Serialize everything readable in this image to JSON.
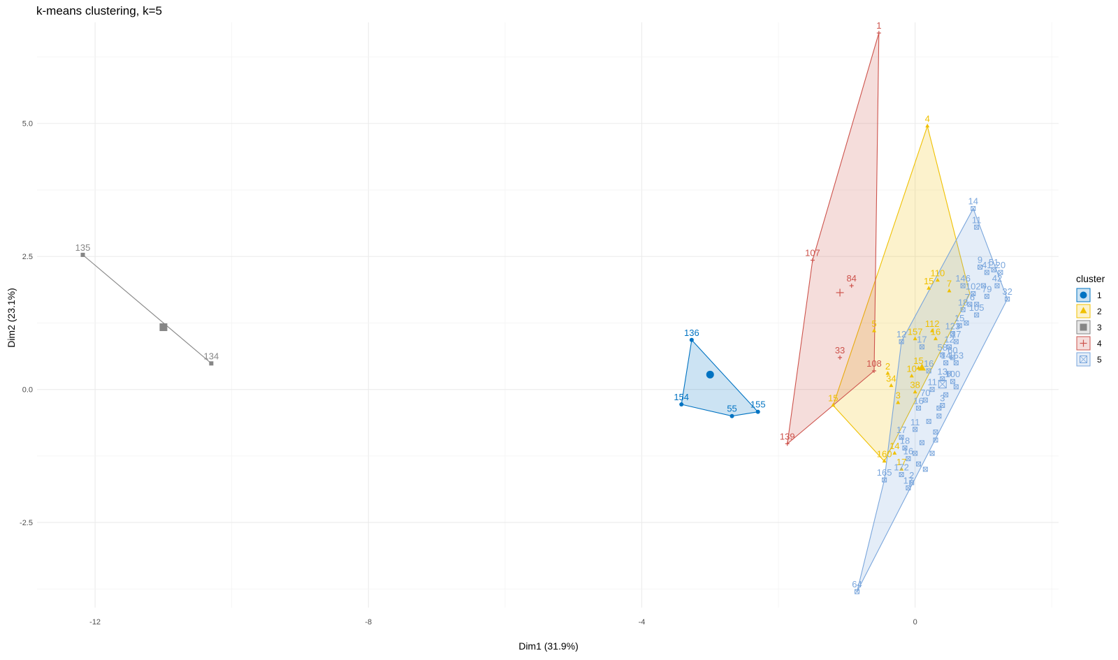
{
  "chart_data": {
    "type": "scatter",
    "title": "k-means clustering, k=5",
    "xlabel": "Dim1 (31.9%)",
    "ylabel": "Dim2 (23.1%)",
    "xlim": [
      -12.85,
      2.1
    ],
    "ylim": [
      -4.1,
      6.9
    ],
    "x_ticks": [
      -12,
      -8,
      -4,
      0
    ],
    "x_tick_labels": [
      "-12",
      "-8",
      "-4",
      "0"
    ],
    "y_ticks": [
      -2.5,
      0.0,
      2.5,
      5.0
    ],
    "y_tick_labels": [
      "-2.5",
      "0.0",
      "2.5",
      "5.0"
    ],
    "grid": true,
    "legend": {
      "title": "cluster",
      "placement": "right",
      "entries": [
        "1",
        "2",
        "3",
        "4",
        "5"
      ]
    },
    "series": [
      {
        "name": "1",
        "color": "#0073C2",
        "shape": "circle",
        "centroid": [
          -3.0,
          0.28
        ],
        "hull": [
          [
            -3.27,
            0.93
          ],
          [
            -2.3,
            -0.42
          ],
          [
            -2.68,
            -0.5
          ],
          [
            -3.42,
            -0.28
          ]
        ],
        "points": [
          {
            "x": -3.27,
            "y": 0.93,
            "label": "136"
          },
          {
            "x": -3.42,
            "y": -0.28,
            "label": "154"
          },
          {
            "x": -2.68,
            "y": -0.5,
            "label": "55"
          },
          {
            "x": -2.3,
            "y": -0.42,
            "label": "155"
          }
        ]
      },
      {
        "name": "2",
        "color": "#EFC000",
        "shape": "triangle",
        "centroid": [
          0.1,
          0.4
        ],
        "hull": [
          [
            0.18,
            4.95
          ],
          [
            0.8,
            1.8
          ],
          [
            -0.45,
            -1.35
          ],
          [
            -1.2,
            -0.3
          ]
        ],
        "points": [
          {
            "x": 0.18,
            "y": 4.95,
            "label": "4"
          },
          {
            "x": 0.33,
            "y": 2.05,
            "label": "110"
          },
          {
            "x": 0.2,
            "y": 1.9,
            "label": "15"
          },
          {
            "x": 0.5,
            "y": 1.85,
            "label": "7"
          },
          {
            "x": -0.6,
            "y": 1.1,
            "label": "5"
          },
          {
            "x": 0.25,
            "y": 1.1,
            "label": "112"
          },
          {
            "x": 0.0,
            "y": 0.95,
            "label": "157"
          },
          {
            "x": 0.3,
            "y": 0.95,
            "label": "16"
          },
          {
            "x": -0.4,
            "y": 0.3,
            "label": "2"
          },
          {
            "x": 0.05,
            "y": 0.4,
            "label": "15"
          },
          {
            "x": -0.05,
            "y": 0.25,
            "label": "10"
          },
          {
            "x": -0.35,
            "y": 0.07,
            "label": "34"
          },
          {
            "x": 0.0,
            "y": -0.05,
            "label": "38"
          },
          {
            "x": -0.25,
            "y": -0.25,
            "label": "3"
          },
          {
            "x": -1.2,
            "y": -0.3,
            "label": "15"
          },
          {
            "x": -0.3,
            "y": -1.2,
            "label": "14"
          },
          {
            "x": -0.45,
            "y": -1.35,
            "label": "160"
          },
          {
            "x": -0.2,
            "y": -1.5,
            "label": "17"
          }
        ]
      },
      {
        "name": "3",
        "color": "#868686",
        "shape": "square",
        "centroid": [
          -11.0,
          1.17
        ],
        "hull": [
          [
            -12.18,
            2.53
          ],
          [
            -10.3,
            0.49
          ]
        ],
        "points": [
          {
            "x": -12.18,
            "y": 2.53,
            "label": "135"
          },
          {
            "x": -10.3,
            "y": 0.49,
            "label": "134"
          }
        ]
      },
      {
        "name": "4",
        "color": "#CD534C",
        "shape": "plus",
        "centroid": [
          -1.1,
          1.82
        ],
        "hull": [
          [
            -0.53,
            6.7
          ],
          [
            -0.6,
            0.35
          ],
          [
            -1.87,
            -1.02
          ],
          [
            -1.5,
            2.43
          ]
        ],
        "points": [
          {
            "x": -0.53,
            "y": 6.7,
            "label": "1"
          },
          {
            "x": -1.5,
            "y": 2.43,
            "label": "107"
          },
          {
            "x": -0.93,
            "y": 1.95,
            "label": "84"
          },
          {
            "x": -1.1,
            "y": 0.6,
            "label": "33"
          },
          {
            "x": -0.6,
            "y": 0.35,
            "label": "108"
          },
          {
            "x": -1.87,
            "y": -1.02,
            "label": "139"
          }
        ]
      },
      {
        "name": "5",
        "color": "#7AA6DC",
        "shape": "square-open",
        "centroid": [
          0.4,
          0.1
        ],
        "hull": [
          [
            0.85,
            3.4
          ],
          [
            1.35,
            1.7
          ],
          [
            -0.85,
            -3.8
          ],
          [
            -0.45,
            -1.7
          ],
          [
            -0.2,
            0.9
          ]
        ],
        "points": [
          {
            "x": 0.85,
            "y": 3.4,
            "label": "14"
          },
          {
            "x": 0.9,
            "y": 3.05,
            "label": "11"
          },
          {
            "x": 0.95,
            "y": 2.3,
            "label": "9"
          },
          {
            "x": 1.15,
            "y": 2.25,
            "label": "51"
          },
          {
            "x": 1.25,
            "y": 2.2,
            "label": "20"
          },
          {
            "x": 1.05,
            "y": 2.2,
            "label": "41"
          },
          {
            "x": 1.2,
            "y": 1.95,
            "label": "42"
          },
          {
            "x": 1.35,
            "y": 1.7,
            "label": "32"
          },
          {
            "x": 0.7,
            "y": 1.95,
            "label": "146"
          },
          {
            "x": 0.85,
            "y": 1.8,
            "label": "102"
          },
          {
            "x": 1.05,
            "y": 1.75,
            "label": "79"
          },
          {
            "x": 0.8,
            "y": 1.6,
            "label": "76"
          },
          {
            "x": 0.7,
            "y": 1.5,
            "label": "18"
          },
          {
            "x": 0.9,
            "y": 1.4,
            "label": "105"
          },
          {
            "x": 0.65,
            "y": 1.2,
            "label": "15"
          },
          {
            "x": 0.6,
            "y": 0.9,
            "label": "17"
          },
          {
            "x": -0.2,
            "y": 0.9,
            "label": "12"
          },
          {
            "x": 0.1,
            "y": 0.8,
            "label": "17"
          },
          {
            "x": 0.55,
            "y": 1.05,
            "label": "123"
          },
          {
            "x": 0.5,
            "y": 0.8,
            "label": "12"
          },
          {
            "x": 0.4,
            "y": 0.65,
            "label": "58"
          },
          {
            "x": 0.55,
            "y": 0.6,
            "label": "60"
          },
          {
            "x": 0.45,
            "y": 0.5,
            "label": "14"
          },
          {
            "x": 0.6,
            "y": 0.5,
            "label": "153"
          },
          {
            "x": 0.2,
            "y": 0.35,
            "label": "16"
          },
          {
            "x": 0.4,
            "y": 0.2,
            "label": "13"
          },
          {
            "x": 0.55,
            "y": 0.15,
            "label": "100"
          },
          {
            "x": 0.25,
            "y": 0.0,
            "label": "11"
          },
          {
            "x": 0.15,
            "y": -0.2,
            "label": "70"
          },
          {
            "x": 0.4,
            "y": -0.3,
            "label": "3"
          },
          {
            "x": 0.05,
            "y": -0.35,
            "label": "16"
          },
          {
            "x": 0.0,
            "y": -0.75,
            "label": "11"
          },
          {
            "x": -0.2,
            "y": -0.9,
            "label": "17"
          },
          {
            "x": -0.15,
            "y": -1.1,
            "label": "18"
          },
          {
            "x": -0.1,
            "y": -1.3,
            "label": "16"
          },
          {
            "x": -0.45,
            "y": -1.7,
            "label": "165"
          },
          {
            "x": -0.2,
            "y": -1.6,
            "label": "172"
          },
          {
            "x": -0.1,
            "y": -1.85,
            "label": "17"
          },
          {
            "x": -0.05,
            "y": -1.75,
            "label": "2"
          },
          {
            "x": -0.85,
            "y": -3.8,
            "label": "64"
          },
          {
            "x": 0.2,
            "y": -0.6,
            "label": ""
          },
          {
            "x": 0.3,
            "y": -0.8,
            "label": ""
          },
          {
            "x": 0.1,
            "y": -1.0,
            "label": ""
          },
          {
            "x": 0.35,
            "y": -0.5,
            "label": ""
          },
          {
            "x": 0.25,
            "y": -1.2,
            "label": ""
          },
          {
            "x": 0.05,
            "y": -1.4,
            "label": ""
          },
          {
            "x": 0.45,
            "y": -0.1,
            "label": ""
          },
          {
            "x": 0.3,
            "y": -0.95,
            "label": ""
          },
          {
            "x": 0.15,
            "y": -1.5,
            "label": ""
          },
          {
            "x": 0.5,
            "y": 0.3,
            "label": ""
          },
          {
            "x": 0.35,
            "y": -0.35,
            "label": ""
          },
          {
            "x": 0.0,
            "y": -1.2,
            "label": ""
          },
          {
            "x": 0.6,
            "y": 0.05,
            "label": ""
          },
          {
            "x": 0.75,
            "y": 1.25,
            "label": ""
          },
          {
            "x": 0.9,
            "y": 1.6,
            "label": ""
          },
          {
            "x": 1.0,
            "y": 1.95,
            "label": ""
          }
        ]
      }
    ]
  }
}
